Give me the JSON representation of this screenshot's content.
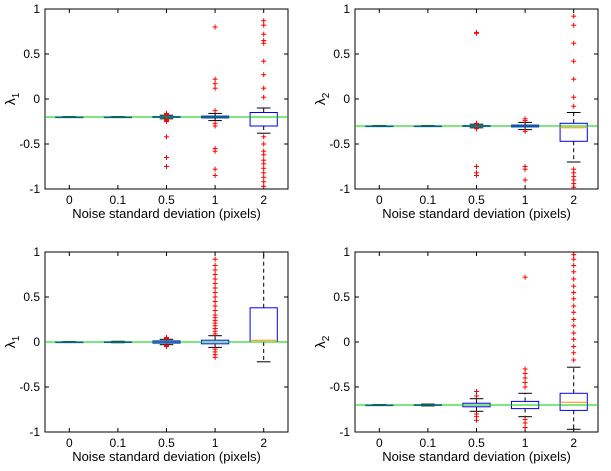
{
  "chart_data": [
    {
      "type": "box",
      "panel": "top-left",
      "ylabel": "λ",
      "ylabel_sub": "1",
      "xlabel": "Noise standard deviation (pixels)",
      "categories": [
        "0",
        "0.1",
        "0.5",
        "1",
        "2"
      ],
      "ylim": [
        -1,
        1
      ],
      "yticks": [
        "-1",
        "-0.5",
        "0",
        "0.5",
        "1"
      ],
      "ytick_values": [
        -1,
        -0.5,
        0,
        0.5,
        1
      ],
      "reference_line": -0.2,
      "boxes": [
        {
          "whisker_low": -0.205,
          "q1": -0.202,
          "median": -0.2,
          "q3": -0.198,
          "whisker_high": -0.195,
          "outliers": []
        },
        {
          "whisker_low": -0.205,
          "q1": -0.202,
          "median": -0.2,
          "q3": -0.198,
          "whisker_high": -0.195,
          "outliers": []
        },
        {
          "whisker_low": -0.22,
          "q1": -0.205,
          "median": -0.2,
          "q3": -0.195,
          "whisker_high": -0.18,
          "outliers": [
            -0.16,
            -0.17,
            -0.23,
            -0.24,
            -0.25,
            -0.42,
            -0.65,
            -0.75
          ]
        },
        {
          "whisker_low": -0.24,
          "q1": -0.21,
          "median": -0.2,
          "q3": -0.19,
          "whisker_high": -0.16,
          "outliers": [
            0.8,
            0.22,
            0.17,
            0.12,
            -0.13,
            -0.27,
            -0.3,
            -0.55,
            -0.58,
            -0.78,
            -0.85
          ]
        },
        {
          "whisker_low": -0.38,
          "q1": -0.3,
          "median": -0.2,
          "q3": -0.15,
          "whisker_high": -0.1,
          "outliers": [
            0.87,
            0.82,
            0.72,
            0.65,
            0.62,
            0.42,
            0.27,
            0.12,
            0.02,
            -0.42,
            -0.5,
            -0.58,
            -0.62,
            -0.68,
            -0.72,
            -0.77,
            -0.82,
            -0.87,
            -0.92,
            -0.97
          ]
        }
      ]
    },
    {
      "type": "box",
      "panel": "top-right",
      "ylabel": "λ",
      "ylabel_sub": "2",
      "xlabel": "Noise standard deviation (pixels)",
      "categories": [
        "0",
        "0.1",
        "0.5",
        "1",
        "2"
      ],
      "ylim": [
        -1,
        1
      ],
      "yticks": [
        "-1",
        "-0.5",
        "0",
        "0.5",
        "1"
      ],
      "ytick_values": [
        -1,
        -0.5,
        0,
        0.5,
        1
      ],
      "reference_line": -0.3,
      "boxes": [
        {
          "whisker_low": -0.305,
          "q1": -0.302,
          "median": -0.3,
          "q3": -0.298,
          "whisker_high": -0.295,
          "outliers": []
        },
        {
          "whisker_low": -0.305,
          "q1": -0.302,
          "median": -0.3,
          "q3": -0.298,
          "whisker_high": -0.295,
          "outliers": []
        },
        {
          "whisker_low": -0.32,
          "q1": -0.305,
          "median": -0.3,
          "q3": -0.295,
          "whisker_high": -0.28,
          "outliers": [
            0.74,
            0.73,
            -0.27,
            -0.33,
            -0.75,
            -0.82,
            -0.85
          ]
        },
        {
          "whisker_low": -0.34,
          "q1": -0.31,
          "median": -0.3,
          "q3": -0.29,
          "whisker_high": -0.26,
          "outliers": [
            -0.22,
            -0.24,
            -0.36,
            -0.75,
            -0.78,
            -0.9
          ]
        },
        {
          "whisker_low": -0.7,
          "q1": -0.47,
          "median": -0.32,
          "q3": -0.27,
          "whisker_high": -0.15,
          "outliers": [
            0.92,
            0.82,
            0.62,
            0.42,
            0.22,
            0.02,
            -0.08,
            -0.78,
            -0.82,
            -0.86,
            -0.9,
            -0.94,
            -0.98
          ]
        }
      ]
    },
    {
      "type": "box",
      "panel": "bottom-left",
      "ylabel": "λ",
      "ylabel_sub": "1",
      "xlabel": "Noise standard deviation (pixels)",
      "categories": [
        "0",
        "0.1",
        "0.5",
        "1",
        "2"
      ],
      "ylim": [
        -1,
        1
      ],
      "yticks": [
        "-1",
        "-0.5",
        "0",
        "0.5",
        "1"
      ],
      "ytick_values": [
        -1,
        -0.5,
        0,
        0.5,
        1
      ],
      "reference_line": 0.0,
      "boxes": [
        {
          "whisker_low": -0.005,
          "q1": -0.002,
          "median": 0.0,
          "q3": 0.002,
          "whisker_high": 0.005,
          "outliers": []
        },
        {
          "whisker_low": -0.008,
          "q1": -0.003,
          "median": 0.0,
          "q3": 0.003,
          "whisker_high": 0.008,
          "outliers": []
        },
        {
          "whisker_low": -0.03,
          "q1": -0.012,
          "median": 0.0,
          "q3": 0.012,
          "whisker_high": 0.03,
          "outliers": [
            0.04,
            0.05,
            -0.04,
            -0.05
          ]
        },
        {
          "whisker_low": -0.06,
          "q1": -0.02,
          "median": 0.0,
          "q3": 0.02,
          "whisker_high": 0.07,
          "outliers": [
            0.92,
            0.85,
            0.8,
            0.75,
            0.7,
            0.65,
            0.6,
            0.55,
            0.5,
            0.45,
            0.4,
            0.35,
            0.3,
            0.27,
            0.24,
            0.21,
            0.18,
            0.15,
            0.12,
            0.09,
            -0.08,
            -0.11,
            -0.14,
            -0.17
          ]
        },
        {
          "whisker_low": -0.22,
          "q1": 0.0,
          "median": 0.02,
          "q3": 0.38,
          "whisker_high": 1.0,
          "outliers": []
        }
      ]
    },
    {
      "type": "box",
      "panel": "bottom-right",
      "ylabel": "λ",
      "ylabel_sub": "2",
      "xlabel": "Noise standard deviation (pixels)",
      "categories": [
        "0",
        "0.1",
        "0.5",
        "1",
        "2"
      ],
      "ylim": [
        -1,
        1
      ],
      "yticks": [
        "-1",
        "-0.5",
        "0",
        "0.5",
        "1"
      ],
      "ytick_values": [
        -1,
        -0.5,
        0,
        0.5,
        1
      ],
      "reference_line": -0.7,
      "boxes": [
        {
          "whisker_low": -0.705,
          "q1": -0.702,
          "median": -0.7,
          "q3": -0.698,
          "whisker_high": -0.695,
          "outliers": []
        },
        {
          "whisker_low": -0.71,
          "q1": -0.704,
          "median": -0.7,
          "q3": -0.696,
          "whisker_high": -0.69,
          "outliers": []
        },
        {
          "whisker_low": -0.77,
          "q1": -0.72,
          "median": -0.7,
          "q3": -0.68,
          "whisker_high": -0.63,
          "outliers": [
            -0.55,
            -0.6,
            -0.8,
            -0.83,
            -0.87
          ]
        },
        {
          "whisker_low": -0.83,
          "q1": -0.74,
          "median": -0.7,
          "q3": -0.66,
          "whisker_high": -0.57,
          "outliers": [
            0.72,
            -0.3,
            -0.35,
            -0.4,
            -0.45,
            -0.5,
            -0.86,
            -0.9,
            -0.95
          ]
        },
        {
          "whisker_low": -0.97,
          "q1": -0.76,
          "median": -0.67,
          "q3": -0.57,
          "whisker_high": -0.28,
          "outliers": [
            0.97,
            0.92,
            0.85,
            0.78,
            0.7,
            0.62,
            0.55,
            0.48,
            0.4,
            0.33,
            0.25,
            0.18,
            0.1,
            0.03,
            -0.05,
            -0.12,
            -0.2
          ]
        }
      ]
    }
  ],
  "colors": {
    "box": "#0000ff",
    "median": "#ff8c00",
    "outlier": "#ff0000",
    "whisker": "#000000",
    "reference_line": "#00cc00"
  }
}
